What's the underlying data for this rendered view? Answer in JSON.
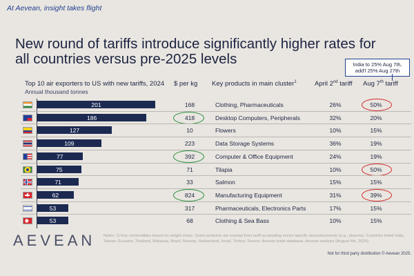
{
  "tagline": "At Aevean, insight takes flight",
  "title": {
    "line1": "New round of tariffs introduce significantly higher rates for",
    "line2": "all countries versus pre-2025 levels"
  },
  "callout": {
    "line1": "India to 25% Aug 7th,",
    "line2": "add'l 25% Aug 27th"
  },
  "headers": {
    "chart_title": "Top 10 air exporters to US with new tariffs, 2024",
    "chart_subtitle": "Annual thousand tonnes",
    "price": "$ per kg",
    "products": "Key products in main cluster",
    "products_sup": "1",
    "april": "April 2nd tariff",
    "august": "Aug 7th tariff",
    "april_label": "April 2",
    "april_sup": "nd",
    "april_tail": " tariff",
    "august_label": "Aug 7",
    "august_sup": "th",
    "august_tail": " tariff"
  },
  "chart_data": {
    "type": "bar",
    "orientation": "horizontal",
    "title": "Top 10 air exporters to US with new tariffs, 2024",
    "xlabel": "Annual thousand tonnes",
    "ylabel": "",
    "xlim": [
      0,
      201
    ],
    "categories": [
      "India",
      "Taiwan",
      "Ecuador",
      "Thailand",
      "Malaysia",
      "Brazil",
      "Norway",
      "Switzerland",
      "Israel",
      "Turkey"
    ],
    "values": [
      201,
      186,
      127,
      109,
      77,
      75,
      71,
      62,
      53,
      53
    ],
    "value_labels": [
      "201",
      "186",
      "127",
      "109",
      "77",
      "75",
      "71",
      "62",
      "53",
      "53"
    ]
  },
  "rows": [
    {
      "country": "India",
      "price": "168",
      "product": "Clothing, Pharmaceuticals",
      "april": "26%",
      "august": "50%",
      "price_circled": false,
      "aug_circled": true
    },
    {
      "country": "Taiwan",
      "price": "418",
      "product": "Desktop Computers, Peripherals",
      "april": "32%",
      "august": "20%",
      "price_circled": true,
      "aug_circled": false
    },
    {
      "country": "Ecuador",
      "price": "10",
      "product": "Flowers",
      "april": "10%",
      "august": "15%",
      "price_circled": false,
      "aug_circled": false
    },
    {
      "country": "Thailand",
      "price": "223",
      "product": "Data Storage Systems",
      "april": "36%",
      "august": "19%",
      "price_circled": false,
      "aug_circled": false
    },
    {
      "country": "Malaysia",
      "price": "392",
      "product": "Computer & Office Equipment",
      "april": "24%",
      "august": "19%",
      "price_circled": true,
      "aug_circled": false
    },
    {
      "country": "Brazil",
      "price": "71",
      "product": "Tilapia",
      "april": "10%",
      "august": "50%",
      "price_circled": false,
      "aug_circled": true
    },
    {
      "country": "Norway",
      "price": "33",
      "product": "Salmon",
      "april": "15%",
      "august": "15%",
      "price_circled": false,
      "aug_circled": false
    },
    {
      "country": "Switzerland",
      "price": "824",
      "product": "Manufacturing Equipment",
      "april": "31%",
      "august": "39%",
      "price_circled": true,
      "aug_circled": true
    },
    {
      "country": "Israel",
      "price": "317",
      "product": "Pharmaceuticals, Electronics Parts",
      "april": "17%",
      "august": "15%",
      "price_circled": false,
      "aug_circled": false
    },
    {
      "country": "Turkey",
      "price": "68",
      "product": "Clothing & Sea Bass",
      "april": "10%",
      "august": "15%",
      "price_circled": false,
      "aug_circled": false
    }
  ],
  "logo": "AEVEAN",
  "notes": "Notes: 1) Key commodities based on weight share. Some products are exempt from tariff as pending sector specific announcements (e.g., pharma). Countries listed India, Taiwan, Ecuador, Thailand, Malaysia, Brazil, Norway, Switzerland, Israel, Turkey. Source: Aevean trade database, Aevean analysis (August 4th, 2025).",
  "copyright": "Not for third party distribution © Aevean 2025.",
  "colors": {
    "bar": "#1c2a52",
    "accent_blue": "#1f3f8f",
    "circle_green": "#2d8f3e",
    "circle_red": "#d22b2b",
    "background": "#e9e6e1"
  }
}
